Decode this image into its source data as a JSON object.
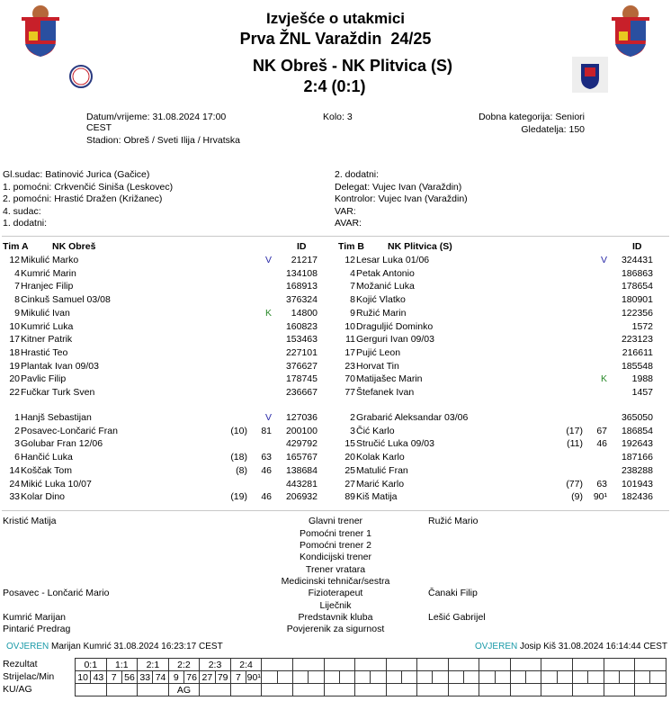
{
  "header": {
    "title": "Izvješće o utakmici",
    "league": "Prva ŽNL Varaždin  24/25",
    "match": "NK Obreš - NK Plitvica (S)",
    "score": "2:4 (0:1)"
  },
  "info": {
    "datetime": "Datum/vrijeme: 31.08.2024 17:00",
    "tz": "CEST",
    "stadium": "Stadion: Obreš / Sveti Ilija / Hrvatska",
    "round": "Kolo: 3",
    "category": "Dobna kategorija: Seniori",
    "spectators": "Gledatelja: 150"
  },
  "officials_left": [
    "Gl.sudac: Batinović Jurica (Gačice)",
    "1. pomoćni: Crkvenčić Siniša (Leskovec)",
    "2. pomoćni: Hrastić   Dražen (Križanec)",
    "4. sudac:",
    "1. dodatni:"
  ],
  "officials_right": [
    "2. dodatni:",
    "Delegat: Vujec Ivan (Varaždin)",
    "Kontrolor: Vujec Ivan (Varaždin)",
    "VAR:",
    "AVAR:"
  ],
  "teams": [
    {
      "label": "Tim A",
      "name": "NK Obreš",
      "id_header": "ID",
      "starters": [
        [
          "12",
          "Mikulić Marko",
          "V",
          "",
          "",
          "21217"
        ],
        [
          "4",
          "Kumrić Marin",
          "",
          "",
          "",
          "134108"
        ],
        [
          "7",
          "Hranjec Filip",
          "",
          "",
          "",
          "168913"
        ],
        [
          "8",
          "Cinkuš Samuel 03/08",
          "",
          "",
          "",
          "376324"
        ],
        [
          "9",
          "Mikulić Ivan",
          "K",
          "",
          "",
          "14800"
        ],
        [
          "10",
          "Kumrić Luka",
          "",
          "",
          "",
          "160823"
        ],
        [
          "17",
          "Kitner Patrik",
          "",
          "",
          "",
          "153463"
        ],
        [
          "18",
          "Hrastić Teo",
          "",
          "",
          "",
          "227101"
        ],
        [
          "19",
          "Plantak Ivan 09/03",
          "",
          "",
          "",
          "376627"
        ],
        [
          "20",
          "Pavlic Filip",
          "",
          "",
          "",
          "178745"
        ],
        [
          "22",
          "Fučkar Turk Sven",
          "",
          "",
          "",
          "236667"
        ]
      ],
      "subs": [
        [
          "1",
          "Hanjš Sebastijan",
          "V",
          "",
          "",
          "127036"
        ],
        [
          "2",
          "Posavec-Lončarić Fran",
          "",
          "(10)",
          "81",
          "200100"
        ],
        [
          "3",
          "Golubar Fran 12/06",
          "",
          "",
          "",
          "429792"
        ],
        [
          "6",
          "Hančić Luka",
          "",
          "(18)",
          "63",
          "165767"
        ],
        [
          "14",
          "Koščak Tom",
          "",
          "(8)",
          "46",
          "138684"
        ],
        [
          "24",
          "Mikić Luka 10/07",
          "",
          "",
          "",
          "443281"
        ],
        [
          "33",
          "Kolar Dino",
          "",
          "(19)",
          "46",
          "206932"
        ]
      ]
    },
    {
      "label": "Tim B",
      "name": "NK Plitvica (S)",
      "id_header": "ID",
      "starters": [
        [
          "12",
          "Lesar Luka 01/06",
          "V",
          "",
          "",
          "324431"
        ],
        [
          "4",
          "Petak Antonio",
          "",
          "",
          "",
          "186863"
        ],
        [
          "7",
          "Možanić Luka",
          "",
          "",
          "",
          "178654"
        ],
        [
          "8",
          "Kojić Vlatko",
          "",
          "",
          "",
          "180901"
        ],
        [
          "9",
          "Ružić Marin",
          "",
          "",
          "",
          "122356"
        ],
        [
          "10",
          "Draguljić Dominko",
          "",
          "",
          "",
          "1572"
        ],
        [
          "11",
          "Gerguri Ivan 09/03",
          "",
          "",
          "",
          "223123"
        ],
        [
          "17",
          "Pujić Leon",
          "",
          "",
          "",
          "216611"
        ],
        [
          "23",
          "Horvat Tin",
          "",
          "",
          "",
          "185548"
        ],
        [
          "70",
          "Matijašec Marin",
          "K",
          "",
          "",
          "1988"
        ],
        [
          "77",
          "Štefanek Ivan",
          "",
          "",
          "",
          "1457"
        ]
      ],
      "subs": [
        [
          "2",
          "Grabarić Aleksandar 03/06",
          "",
          "",
          "",
          "365050"
        ],
        [
          "3",
          "Čić Karlo",
          "",
          "(17)",
          "67",
          "186854"
        ],
        [
          "15",
          "Stručić Luka 09/03",
          "",
          "(11)",
          "46",
          "192643"
        ],
        [
          "20",
          "Kolak Karlo",
          "",
          "",
          "",
          "187166"
        ],
        [
          "25",
          "Matulić Fran",
          "",
          "",
          "",
          "238288"
        ],
        [
          "27",
          "Marić Karlo",
          "",
          "(77)",
          "63",
          "101943"
        ],
        [
          "89",
          "Kiš Matija",
          "",
          "(9)",
          "90¹",
          "182436"
        ]
      ]
    }
  ],
  "staff": [
    {
      "role": "Glavni trener",
      "home": "Kristić Matija",
      "away": "Ružić Mario"
    },
    {
      "role": "Pomoćni trener 1",
      "home": "",
      "away": ""
    },
    {
      "role": "Pomoćni trener 2",
      "home": "",
      "away": ""
    },
    {
      "role": "Kondicijski trener",
      "home": "",
      "away": ""
    },
    {
      "role": "Trener vratara",
      "home": "",
      "away": ""
    },
    {
      "role": "Medicinski tehničar/sestra",
      "home": "",
      "away": ""
    },
    {
      "role": "Fizioterapeut",
      "home": "Posavec - Lončarić Mario",
      "away": "Čanaki Filip"
    },
    {
      "role": "Liječnik",
      "home": "",
      "away": ""
    },
    {
      "role": "Predstavnik kluba",
      "home": "Kumrić Marijan",
      "away": "Lešić Gabrijel"
    },
    {
      "role": "Povjerenik za sigurnost",
      "home": "Pintarić Predrag",
      "away": ""
    }
  ],
  "verified": {
    "label": "OVJEREN",
    "home": "Marijan Kumrić 31.08.2024 16:23:17 CEST",
    "away": "Josip Kiš 31.08.2024 16:14:44 CEST"
  },
  "scoring": {
    "labels": [
      "Rezultat",
      "Strijelac/Min",
      "KU/AG"
    ],
    "goals": [
      {
        "score": "0:1",
        "scorer": "10",
        "min": "43",
        "kuag": ""
      },
      {
        "score": "1:1",
        "scorer": "7",
        "min": "56",
        "kuag": ""
      },
      {
        "score": "2:1",
        "scorer": "33",
        "min": "74",
        "kuag": ""
      },
      {
        "score": "2:2",
        "scorer": "9",
        "min": "76",
        "kuag": "AG"
      },
      {
        "score": "2:3",
        "scorer": "27",
        "min": "79",
        "kuag": ""
      },
      {
        "score": "2:4",
        "scorer": "7",
        "min": "90¹",
        "kuag": ""
      }
    ],
    "total_columns": 19
  }
}
